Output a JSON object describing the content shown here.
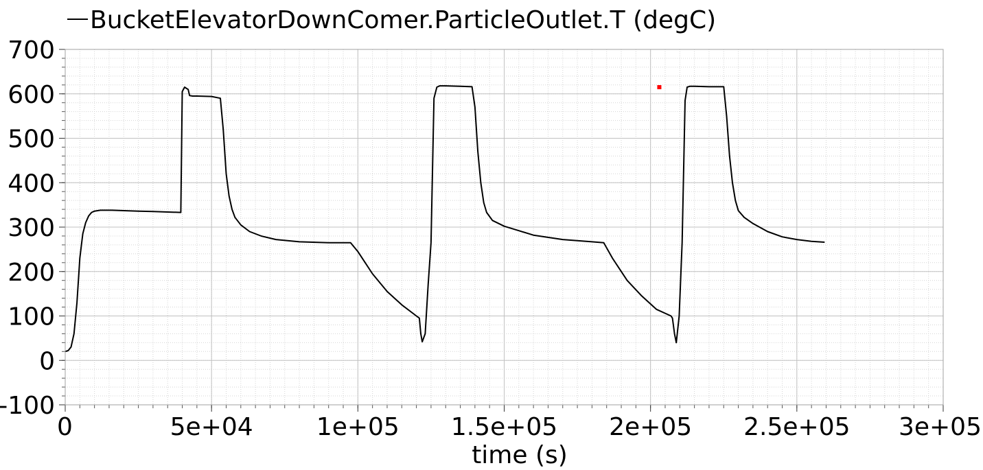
{
  "chart_data": {
    "type": "line",
    "title": "",
    "xlabel": "time (s)",
    "ylabel": "",
    "xlim": [
      0,
      300000
    ],
    "ylim": [
      -100,
      700
    ],
    "x_ticks": [
      0,
      50000,
      100000,
      150000,
      200000,
      250000,
      300000
    ],
    "x_tick_labels": [
      "0",
      "5e+04",
      "1e+05",
      "1.5e+05",
      "2e+05",
      "2.5e+05",
      "3e+05"
    ],
    "y_ticks": [
      -100,
      0,
      100,
      200,
      300,
      400,
      500,
      600,
      700
    ],
    "y_tick_labels": [
      "-100",
      "0",
      "100",
      "200",
      "300",
      "400",
      "500",
      "600",
      "700"
    ],
    "grid": true,
    "legend_position": "top-left",
    "line_color": "#000000",
    "marker_color": "#ff0000",
    "series": [
      {
        "name": "BucketElevatorDownComer.ParticleOutlet.T (degC)",
        "x": [
          0,
          1000,
          2000,
          3000,
          4000,
          5000,
          6000,
          7000,
          8000,
          9000,
          10000,
          12000,
          14000,
          16000,
          20000,
          25000,
          30000,
          35000,
          39500,
          40000,
          40800,
          41500,
          42000,
          42500,
          43500,
          45000,
          50000,
          53000,
          54000,
          55000,
          56000,
          57000,
          58000,
          60000,
          63000,
          67000,
          72000,
          80000,
          90000,
          97500,
          100000,
          105000,
          110000,
          115000,
          120000,
          121000,
          121500,
          122000,
          123000,
          124000,
          125000,
          126000,
          127000,
          128000,
          130000,
          135000,
          139000,
          140000,
          141000,
          142000,
          143000,
          144000,
          146000,
          150000,
          155000,
          160000,
          170000,
          180000,
          184000,
          187000,
          192000,
          197000,
          202000,
          207000,
          207500,
          208200,
          208800,
          209800,
          210800,
          211800,
          212500,
          213500,
          215000,
          220000,
          225000,
          226000,
          227000,
          228000,
          229000,
          230000,
          232000,
          235000,
          240000,
          245000,
          250000,
          255000,
          259500
        ],
        "values": [
          20,
          22,
          30,
          60,
          130,
          230,
          285,
          310,
          325,
          333,
          336,
          338,
          338,
          338,
          337,
          336,
          335,
          334,
          333,
          605,
          615,
          612,
          610,
          596,
          595,
          595,
          594,
          590,
          520,
          420,
          370,
          340,
          322,
          305,
          290,
          280,
          272,
          267,
          265,
          265,
          245,
          195,
          155,
          125,
          100,
          95,
          60,
          42,
          60,
          170,
          265,
          590,
          615,
          618,
          618,
          617,
          616,
          570,
          470,
          400,
          355,
          333,
          315,
          302,
          292,
          282,
          272,
          267,
          265,
          230,
          180,
          145,
          115,
          100,
          95,
          60,
          40,
          100,
          265,
          585,
          615,
          617,
          617,
          616,
          616,
          550,
          460,
          400,
          360,
          337,
          322,
          308,
          290,
          278,
          272,
          268,
          266
        ]
      }
    ],
    "markers": [
      {
        "x": 203000,
        "y": 615
      }
    ]
  }
}
